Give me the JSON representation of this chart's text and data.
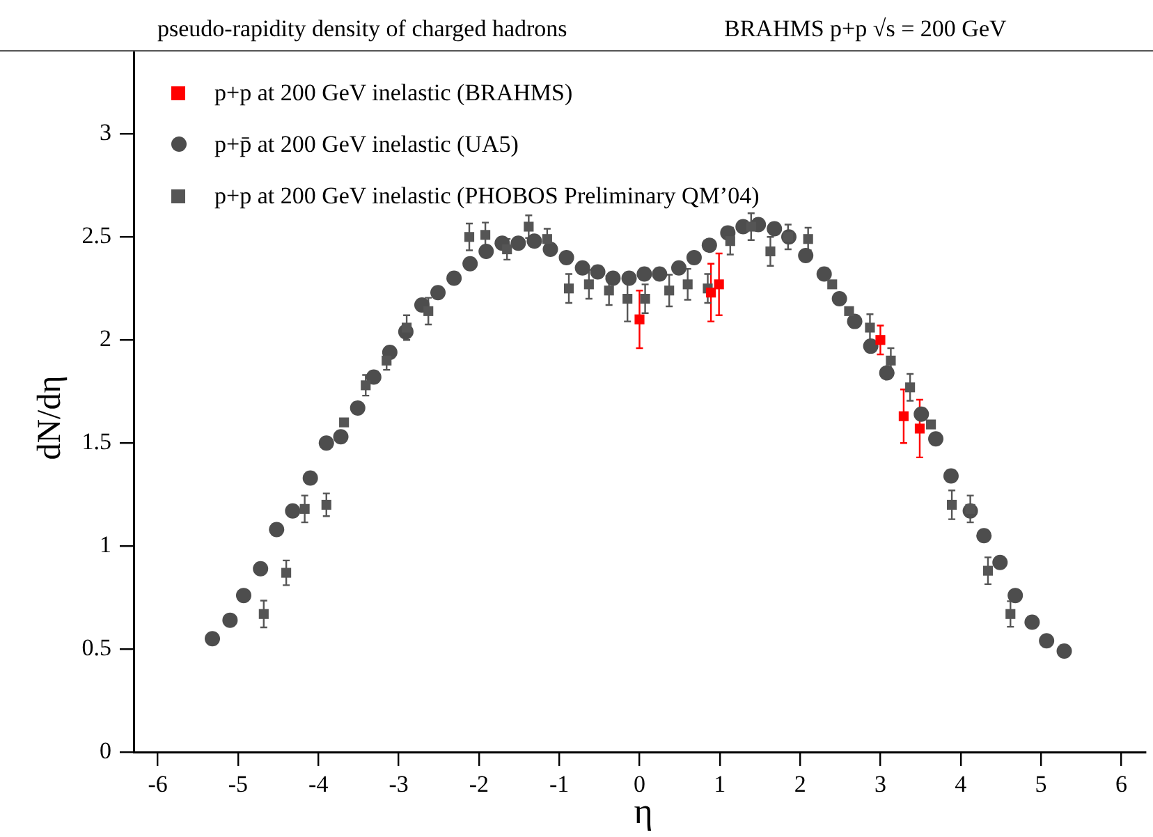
{
  "chart_data": {
    "type": "scatter",
    "title": "pseudo-rapidity density of charged hadrons",
    "subtitle": "BRAHMS  p+p  √s = 200 GeV",
    "xlabel": "η",
    "ylabel": "dN/dη",
    "xlim": [
      -6.3,
      6.3
    ],
    "ylim": [
      0,
      3.4
    ],
    "xticks": [
      -6,
      -5,
      -4,
      -3,
      -2,
      -1,
      0,
      1,
      2,
      3,
      4,
      5,
      6
    ],
    "yticks": [
      0,
      0.5,
      1,
      1.5,
      2,
      2.5,
      3
    ],
    "grid": false,
    "legend": "top left",
    "series": [
      {
        "name": "p+p at 200 GeV inelastic (BRAHMS)",
        "color": "#ff0000",
        "marker": "square",
        "x": [
          0.0,
          0.89,
          0.99,
          3.0,
          3.29,
          3.49
        ],
        "values": [
          2.1,
          2.23,
          2.27,
          2.0,
          1.63,
          1.57
        ],
        "errors": [
          0.14,
          0.14,
          0.15,
          0.07,
          0.13,
          0.14
        ]
      },
      {
        "name": "p+p̄ at 200 GeV inelastic (UA5)",
        "color": "#4d4d4d",
        "marker": "circle",
        "x": [
          -5.32,
          -5.1,
          -4.93,
          -4.72,
          -4.52,
          -4.32,
          -4.1,
          -3.9,
          -3.72,
          -3.51,
          -3.31,
          -3.11,
          -2.91,
          -2.71,
          -2.51,
          -2.31,
          -2.11,
          -1.91,
          -1.71,
          -1.51,
          -1.31,
          -1.11,
          -0.91,
          -0.71,
          -0.52,
          -0.33,
          -0.13,
          0.06,
          0.25,
          0.49,
          0.68,
          0.87,
          1.1,
          1.29,
          1.48,
          1.68,
          1.86,
          2.07,
          2.3,
          2.49,
          2.68,
          2.88,
          3.08,
          3.51,
          3.69,
          3.88,
          4.12,
          4.29,
          4.49,
          4.68,
          4.89,
          5.07,
          5.29
        ],
        "values": [
          0.55,
          0.64,
          0.76,
          0.89,
          1.08,
          1.17,
          1.33,
          1.5,
          1.53,
          1.67,
          1.82,
          1.94,
          2.04,
          2.17,
          2.23,
          2.3,
          2.37,
          2.43,
          2.47,
          2.47,
          2.48,
          2.44,
          2.4,
          2.35,
          2.33,
          2.3,
          2.3,
          2.32,
          2.32,
          2.35,
          2.4,
          2.46,
          2.52,
          2.55,
          2.56,
          2.54,
          2.5,
          2.41,
          2.32,
          2.2,
          2.09,
          1.97,
          1.84,
          1.64,
          1.52,
          1.34,
          1.17,
          1.05,
          0.92,
          0.76,
          0.63,
          0.54,
          0.49
        ]
      },
      {
        "name": "p+p at 200 GeV inelastic (PHOBOS Preliminary  QM’04)",
        "color": "#555555",
        "marker": "square",
        "x": [
          -4.68,
          -4.4,
          -4.17,
          -3.9,
          -3.68,
          -3.41,
          -3.15,
          -2.9,
          -2.63,
          -2.12,
          -1.92,
          -1.65,
          -1.38,
          -1.15,
          -0.88,
          -0.63,
          -0.38,
          -0.15,
          0.07,
          0.37,
          0.6,
          0.85,
          1.13,
          1.39,
          1.63,
          1.85,
          2.1,
          2.4,
          2.61,
          2.87,
          3.13,
          3.37,
          3.63,
          3.89,
          4.12,
          4.34,
          4.62
        ],
        "values": [
          0.67,
          0.87,
          1.18,
          1.2,
          1.6,
          1.78,
          1.9,
          2.06,
          2.14,
          2.5,
          2.51,
          2.44,
          2.55,
          2.49,
          2.25,
          2.27,
          2.24,
          2.2,
          2.2,
          2.24,
          2.27,
          2.25,
          2.48,
          2.55,
          2.43,
          2.5,
          2.49,
          2.27,
          2.14,
          2.06,
          1.9,
          1.77,
          1.59,
          1.2,
          1.18,
          0.88,
          0.67
        ],
        "errors": [
          0.065,
          0.06,
          0.065,
          0.055,
          null,
          0.05,
          0.045,
          0.06,
          0.065,
          0.065,
          0.06,
          0.05,
          0.055,
          0.05,
          0.07,
          0.07,
          0.07,
          0.11,
          0.07,
          0.077,
          0.075,
          0.07,
          0.065,
          0.065,
          0.07,
          0.06,
          0.055,
          null,
          null,
          0.065,
          0.06,
          0.065,
          null,
          0.07,
          0.065,
          0.065,
          0.062
        ]
      }
    ]
  }
}
